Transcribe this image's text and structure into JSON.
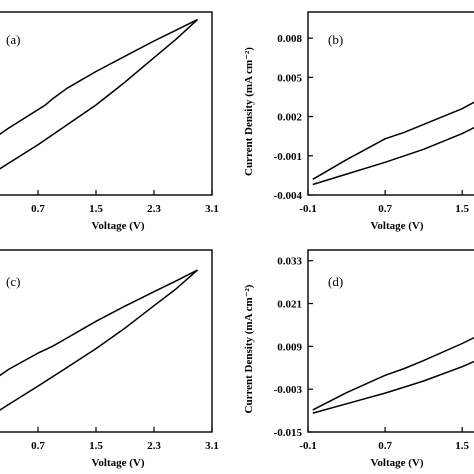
{
  "chart_data": [
    {
      "type": "line",
      "panel_label": "(a)",
      "xlabel": "Voltage (V)",
      "ylabel": "",
      "xlim": [
        -0.1,
        3.1
      ],
      "ylim": [
        -0.004,
        0.008
      ],
      "x_ticks": [
        "0.7",
        "1.5",
        "2.3",
        "3.1"
      ],
      "y_ticks": [],
      "series": [
        {
          "name": "",
          "x": [
            -0.1,
            0.3,
            0.7,
            1.1,
            1.5,
            1.9,
            2.3,
            2.6,
            2.9
          ],
          "y": [
            -0.0031,
            -0.0019,
            -0.0007,
            0.0006,
            0.0019,
            0.0034,
            0.005,
            0.0062,
            0.0075
          ]
        },
        {
          "name": "",
          "x": [
            2.9,
            2.6,
            2.3,
            1.9,
            1.5,
            1.1,
            0.9,
            0.8,
            0.7,
            0.3,
            -0.1
          ],
          "y": [
            0.0075,
            0.0068,
            0.0061,
            0.0051,
            0.0041,
            0.003,
            0.0023,
            0.0019,
            0.0016,
            0.0004,
            -0.0009
          ]
        }
      ]
    },
    {
      "type": "line",
      "panel_label": "(b)",
      "xlabel": "Voltage (V)",
      "ylabel": "Current Density (mA cm⁻²)",
      "xlim": [
        -0.1,
        2.1
      ],
      "ylim": [
        -0.004,
        0.01
      ],
      "x_ticks": [
        "-0.1",
        "0.7",
        "1.5"
      ],
      "y_ticks": [
        "0.008",
        "0.005",
        "0.002",
        "-0.001",
        "-0.004"
      ],
      "series": [
        {
          "name": "",
          "x": [
            -0.05,
            0.3,
            0.7,
            1.1,
            1.5,
            1.8,
            2.0
          ],
          "y": [
            -0.0032,
            -0.0024,
            -0.0015,
            -0.0005,
            0.0007,
            0.0018,
            0.0026
          ]
        },
        {
          "name": "",
          "x": [
            2.0,
            1.8,
            1.5,
            1.1,
            0.9,
            0.7,
            0.3,
            -0.05
          ],
          "y": [
            0.0046,
            0.0038,
            0.0026,
            0.0014,
            0.0008,
            0.0003,
            -0.0013,
            -0.0028
          ]
        }
      ]
    },
    {
      "type": "line",
      "panel_label": "(c)",
      "xlabel": "Voltage (V)",
      "ylabel": "",
      "xlim": [
        -0.1,
        3.1
      ],
      "ylim": [
        -0.015,
        0.033
      ],
      "x_ticks": [
        "0.7",
        "1.5",
        "2.3",
        "3.1"
      ],
      "y_ticks": [],
      "series": [
        {
          "name": "",
          "x": [
            -0.1,
            0.3,
            0.7,
            1.1,
            1.5,
            1.9,
            2.3,
            2.6,
            2.9
          ],
          "y": [
            -0.0125,
            -0.0077,
            -0.0029,
            0.002,
            0.007,
            0.0124,
            0.0183,
            0.0227,
            0.0277
          ]
        },
        {
          "name": "",
          "x": [
            2.9,
            2.6,
            2.3,
            1.9,
            1.5,
            1.1,
            0.9,
            0.8,
            0.7,
            0.3,
            -0.1
          ],
          "y": [
            0.0277,
            0.0248,
            0.022,
            0.0182,
            0.0142,
            0.0098,
            0.0076,
            0.0067,
            0.0058,
            0.0016,
            -0.0037
          ]
        }
      ]
    },
    {
      "type": "line",
      "panel_label": "(d)",
      "xlabel": "Voltage (V)",
      "ylabel": "Current Density (mA cm⁻²)",
      "xlim": [
        -0.1,
        2.1
      ],
      "ylim": [
        -0.015,
        0.036
      ],
      "x_ticks": [
        "-0.1",
        "0.7",
        "1.5"
      ],
      "y_ticks": [
        "0.033",
        "0.021",
        "0.009",
        "-0.003",
        "-0.015"
      ],
      "series": [
        {
          "name": "",
          "x": [
            -0.05,
            0.3,
            0.7,
            1.1,
            1.5,
            1.8,
            2.0
          ],
          "y": [
            -0.0097,
            -0.0071,
            -0.0041,
            -0.0007,
            0.0033,
            0.0068,
            0.0098
          ]
        },
        {
          "name": "",
          "x": [
            2.0,
            1.8,
            1.5,
            1.1,
            0.9,
            0.7,
            0.3,
            -0.05
          ],
          "y": [
            0.0166,
            0.0138,
            0.0098,
            0.005,
            0.0028,
            0.0009,
            -0.004,
            -0.0088
          ]
        }
      ]
    }
  ]
}
